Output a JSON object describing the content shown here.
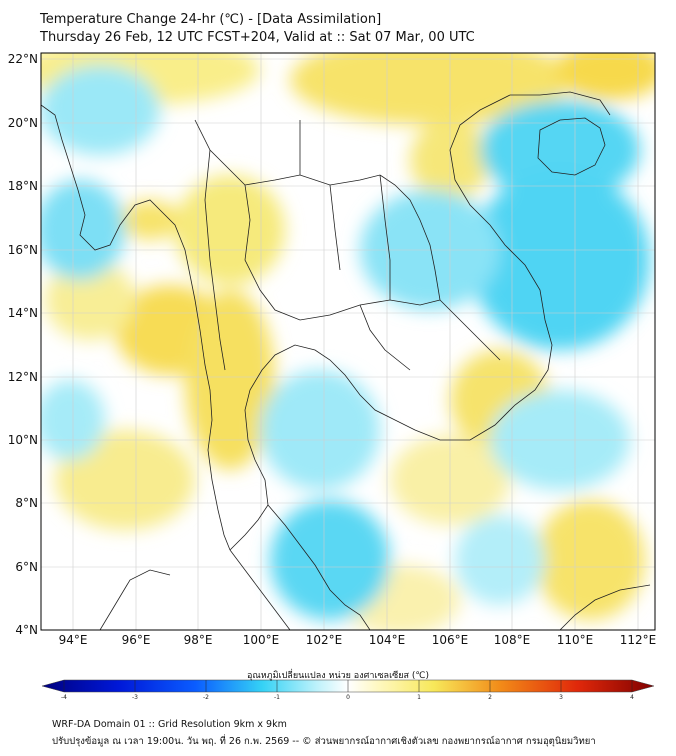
{
  "header": {
    "title_line1": "Temperature Change 24-hr (℃) - [Data Assimilation]",
    "title_line2": "Thursday 26 Feb, 12 UTC FCST+204, Valid at :: Sat 07 Mar, 00 UTC"
  },
  "map": {
    "lat_labels": [
      "22°N",
      "20°N",
      "18°N",
      "16°N",
      "14°N",
      "12°N",
      "10°N",
      "8°N",
      "6°N",
      "4°N"
    ],
    "lon_labels": [
      "94°E",
      "96°E",
      "98°E",
      "100°E",
      "102°E",
      "104°E",
      "106°E",
      "108°E",
      "110°E",
      "112°E"
    ],
    "lat_range": [
      4,
      22.2
    ],
    "lon_range": [
      93,
      112.5
    ]
  },
  "colorbar": {
    "title": "อุณหภูมิเปลี่ยนแปลง หน่วย องศาเซลเซียส (℃)",
    "tick_labels": [
      "-4",
      "-3",
      "-2",
      "-1",
      "0",
      "1",
      "2",
      "3",
      "4"
    ],
    "min": -4,
    "max": 4,
    "colors": {
      "cold_extreme": "#00007f",
      "cold": "#0a5cff",
      "cool": "#35d2f5",
      "neutral": "#ffffff",
      "warm": "#f7e85a",
      "hot": "#f28a18",
      "hot_extreme": "#7f0000"
    }
  },
  "footer": {
    "line1": "WRF-DA Domain 01 :: Grid Resolution 9km x 9km",
    "line2": "ปรับปรุงข้อมูล ณ เวลา 19:00น. วัน พฤ. ที่ 26 ก.พ. 2569 -- © ส่วนพยากรณ์อากาศเชิงตัวเลข กองพยากรณ์อากาศ กรมอุตุนิยมวิทยา"
  }
}
